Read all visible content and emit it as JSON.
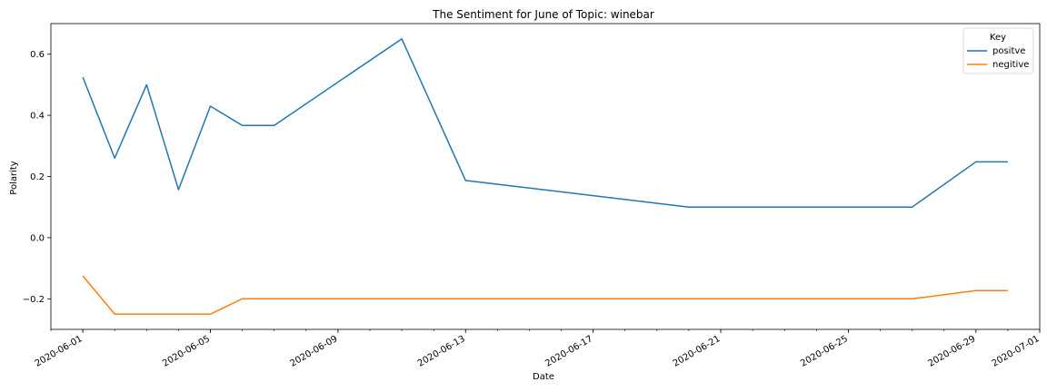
{
  "chart_data": {
    "type": "line",
    "title": "The Sentiment for June of Topic: winebar",
    "xlabel": "Date",
    "ylabel": "Polarity",
    "x_tick_labels": [
      "2020-06-01",
      "2020-06-05",
      "2020-06-09",
      "2020-06-13",
      "2020-06-17",
      "2020-06-21",
      "2020-06-25",
      "2020-06-29",
      "2020-07-01"
    ],
    "y_tick_labels": [
      "−0.2",
      "0.0",
      "0.2",
      "0.4",
      "0.6"
    ],
    "y_ticks": [
      -0.2,
      0.0,
      0.2,
      0.4,
      0.6
    ],
    "ylim": [
      -0.3,
      0.7
    ],
    "xlim": [
      "2020-05-31",
      "2020-07-01"
    ],
    "grid": false,
    "legend": {
      "title": "Key",
      "placement": "top-right"
    },
    "series": [
      {
        "name": "positve",
        "color": "#1f77b4",
        "points": [
          [
            "2020-06-01",
            0.525
          ],
          [
            "2020-06-02",
            0.26
          ],
          [
            "2020-06-03",
            0.5
          ],
          [
            "2020-06-04",
            0.157
          ],
          [
            "2020-06-05",
            0.43
          ],
          [
            "2020-06-06",
            0.367
          ],
          [
            "2020-06-07",
            0.367
          ],
          [
            "2020-06-11",
            0.65
          ],
          [
            "2020-06-13",
            0.187
          ],
          [
            "2020-06-20",
            0.1
          ],
          [
            "2020-06-27",
            0.1
          ],
          [
            "2020-06-29",
            0.248
          ],
          [
            "2020-06-30",
            0.248
          ]
        ]
      },
      {
        "name": "negitive",
        "color": "#ff7f0e",
        "points": [
          [
            "2020-06-01",
            -0.125
          ],
          [
            "2020-06-02",
            -0.25
          ],
          [
            "2020-06-05",
            -0.25
          ],
          [
            "2020-06-06",
            -0.2
          ],
          [
            "2020-06-27",
            -0.2
          ],
          [
            "2020-06-29",
            -0.173
          ],
          [
            "2020-06-30",
            -0.173
          ]
        ]
      }
    ]
  }
}
